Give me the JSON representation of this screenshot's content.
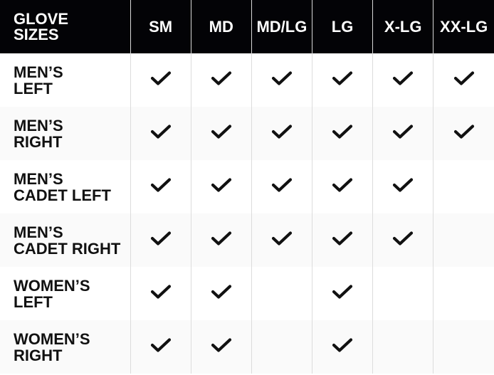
{
  "header": {
    "title": "GLOVE\nSIZES",
    "sizes": [
      "SM",
      "MD",
      "MD/LG",
      "LG",
      "X-LG",
      "XX-LG"
    ]
  },
  "rows": [
    {
      "label": "MEN’S\nLEFT",
      "available": [
        true,
        true,
        true,
        true,
        true,
        true
      ]
    },
    {
      "label": "MEN’S\nRIGHT",
      "available": [
        true,
        true,
        true,
        true,
        true,
        true
      ]
    },
    {
      "label": "MEN’S\nCADET LEFT",
      "available": [
        true,
        true,
        true,
        true,
        true,
        false
      ]
    },
    {
      "label": "MEN’S\nCADET RIGHT",
      "available": [
        true,
        true,
        true,
        true,
        true,
        false
      ]
    },
    {
      "label": "WOMEN’S\nLEFT",
      "available": [
        true,
        true,
        false,
        true,
        false,
        false
      ]
    },
    {
      "label": "WOMEN’S\nRIGHT",
      "available": [
        true,
        true,
        false,
        true,
        false,
        false
      ]
    }
  ],
  "icons": {
    "available": "checkmark-icon"
  },
  "colors": {
    "header_bg": "#030306",
    "header_text": "#ffffff",
    "alt_row": "#fafafa",
    "check": "#111111"
  }
}
